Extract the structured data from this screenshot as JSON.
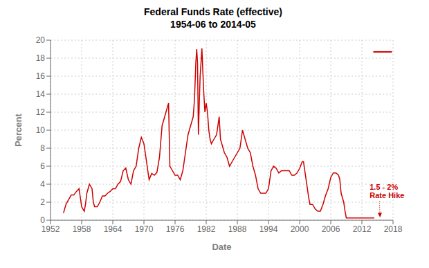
{
  "chart_data": {
    "type": "line",
    "title": "Federal Funds Rate (effective)",
    "subtitle": "1954-06 to 2014-05",
    "xlabel": "Date",
    "ylabel": "Percent",
    "xlim": [
      1952,
      2018
    ],
    "ylim": [
      0,
      20
    ],
    "xticks": [
      1952,
      1958,
      1964,
      1970,
      1976,
      1982,
      1988,
      1994,
      2000,
      2006,
      2012,
      2018
    ],
    "yticks": [
      0,
      2,
      4,
      6,
      8,
      10,
      12,
      14,
      16,
      18,
      20
    ],
    "grid": true,
    "series": [
      {
        "color": "#cc0000",
        "x": [
          1954.5,
          1955.0,
          1955.5,
          1956.0,
          1956.5,
          1957.0,
          1957.5,
          1957.75,
          1958.0,
          1958.5,
          1958.75,
          1959.0,
          1959.5,
          1960.0,
          1960.25,
          1960.5,
          1961.0,
          1961.5,
          1962.0,
          1962.5,
          1963.0,
          1963.5,
          1964.0,
          1964.5,
          1965.0,
          1965.5,
          1966.0,
          1966.5,
          1967.0,
          1967.5,
          1968.0,
          1968.5,
          1969.0,
          1969.5,
          1970.0,
          1970.5,
          1971.0,
          1971.5,
          1972.0,
          1972.5,
          1973.0,
          1973.5,
          1974.0,
          1974.5,
          1974.75,
          1975.0,
          1975.5,
          1976.0,
          1976.5,
          1977.0,
          1977.5,
          1978.0,
          1978.5,
          1979.0,
          1979.5,
          1979.75,
          1980.0,
          1980.17,
          1980.33,
          1980.5,
          1980.67,
          1980.83,
          1981.0,
          1981.17,
          1981.5,
          1981.75,
          1982.0,
          1982.25,
          1982.5,
          1982.75,
          1983.0,
          1983.5,
          1984.0,
          1984.5,
          1984.75,
          1985.0,
          1985.5,
          1986.0,
          1986.5,
          1987.0,
          1987.5,
          1988.0,
          1988.5,
          1989.0,
          1989.5,
          1990.0,
          1990.5,
          1991.0,
          1991.5,
          1992.0,
          1992.5,
          1993.0,
          1993.5,
          1994.0,
          1994.5,
          1995.0,
          1995.5,
          1996.0,
          1996.5,
          1997.0,
          1997.5,
          1998.0,
          1998.5,
          1999.0,
          1999.5,
          2000.0,
          2000.5,
          2000.75,
          2001.0,
          2001.5,
          2001.75,
          2002.0,
          2002.5,
          2003.0,
          2003.5,
          2004.0,
          2004.5,
          2005.0,
          2005.5,
          2006.0,
          2006.5,
          2006.75,
          2007.0,
          2007.5,
          2007.75,
          2008.0,
          2008.5,
          2008.75,
          2009.0,
          2009.5,
          2010.0,
          2010.5,
          2011.0,
          2011.5,
          2012.0,
          2012.5,
          2013.0,
          2013.5,
          2014.0,
          2014.4
        ],
        "values": [
          0.8,
          1.8,
          2.3,
          2.8,
          2.8,
          3.2,
          3.5,
          2.5,
          1.5,
          1.0,
          1.8,
          3.0,
          4.0,
          3.5,
          2.0,
          1.5,
          1.5,
          2.0,
          2.7,
          2.7,
          3.0,
          3.2,
          3.5,
          3.5,
          4.0,
          4.3,
          5.5,
          5.8,
          4.5,
          4.0,
          5.5,
          6.0,
          8.0,
          9.2,
          8.5,
          6.5,
          4.5,
          5.2,
          5.0,
          5.3,
          7.0,
          10.5,
          11.5,
          12.5,
          13.0,
          6.0,
          5.5,
          5.0,
          5.0,
          4.5,
          5.5,
          7.5,
          9.5,
          10.5,
          11.5,
          13.5,
          17.5,
          19.0,
          17.5,
          9.5,
          13.0,
          16.0,
          17.5,
          19.1,
          14.5,
          12.0,
          13.0,
          12.0,
          10.0,
          9.0,
          8.5,
          9.0,
          9.5,
          11.5,
          9.0,
          8.5,
          7.5,
          7.0,
          6.0,
          6.5,
          7.0,
          7.5,
          8.0,
          10.0,
          9.0,
          8.0,
          7.5,
          6.0,
          5.0,
          3.5,
          3.0,
          3.0,
          3.0,
          3.5,
          5.5,
          6.0,
          5.75,
          5.25,
          5.5,
          5.5,
          5.5,
          5.5,
          5.0,
          5.0,
          5.25,
          5.75,
          6.5,
          6.5,
          5.5,
          3.5,
          2.5,
          1.75,
          1.75,
          1.25,
          1.0,
          1.0,
          1.75,
          2.75,
          3.5,
          4.75,
          5.25,
          5.25,
          5.25,
          5.0,
          4.5,
          3.0,
          2.0,
          1.0,
          0.25,
          0.25,
          0.25,
          0.25,
          0.25,
          0.25,
          0.25,
          0.25,
          0.25,
          0.25,
          0.25,
          0.25
        ]
      },
      {
        "color": "#cc0000",
        "x": [
          2014.2,
          2017.8
        ],
        "values": [
          18.7,
          18.7
        ]
      }
    ],
    "annotations": [
      {
        "text": "1.5 - 2%\nRate Hike",
        "x": 2013.5,
        "y": 3.2,
        "arrow_x": 2015.5,
        "arrow_y": 0.3,
        "color": "#cc0000"
      }
    ]
  }
}
